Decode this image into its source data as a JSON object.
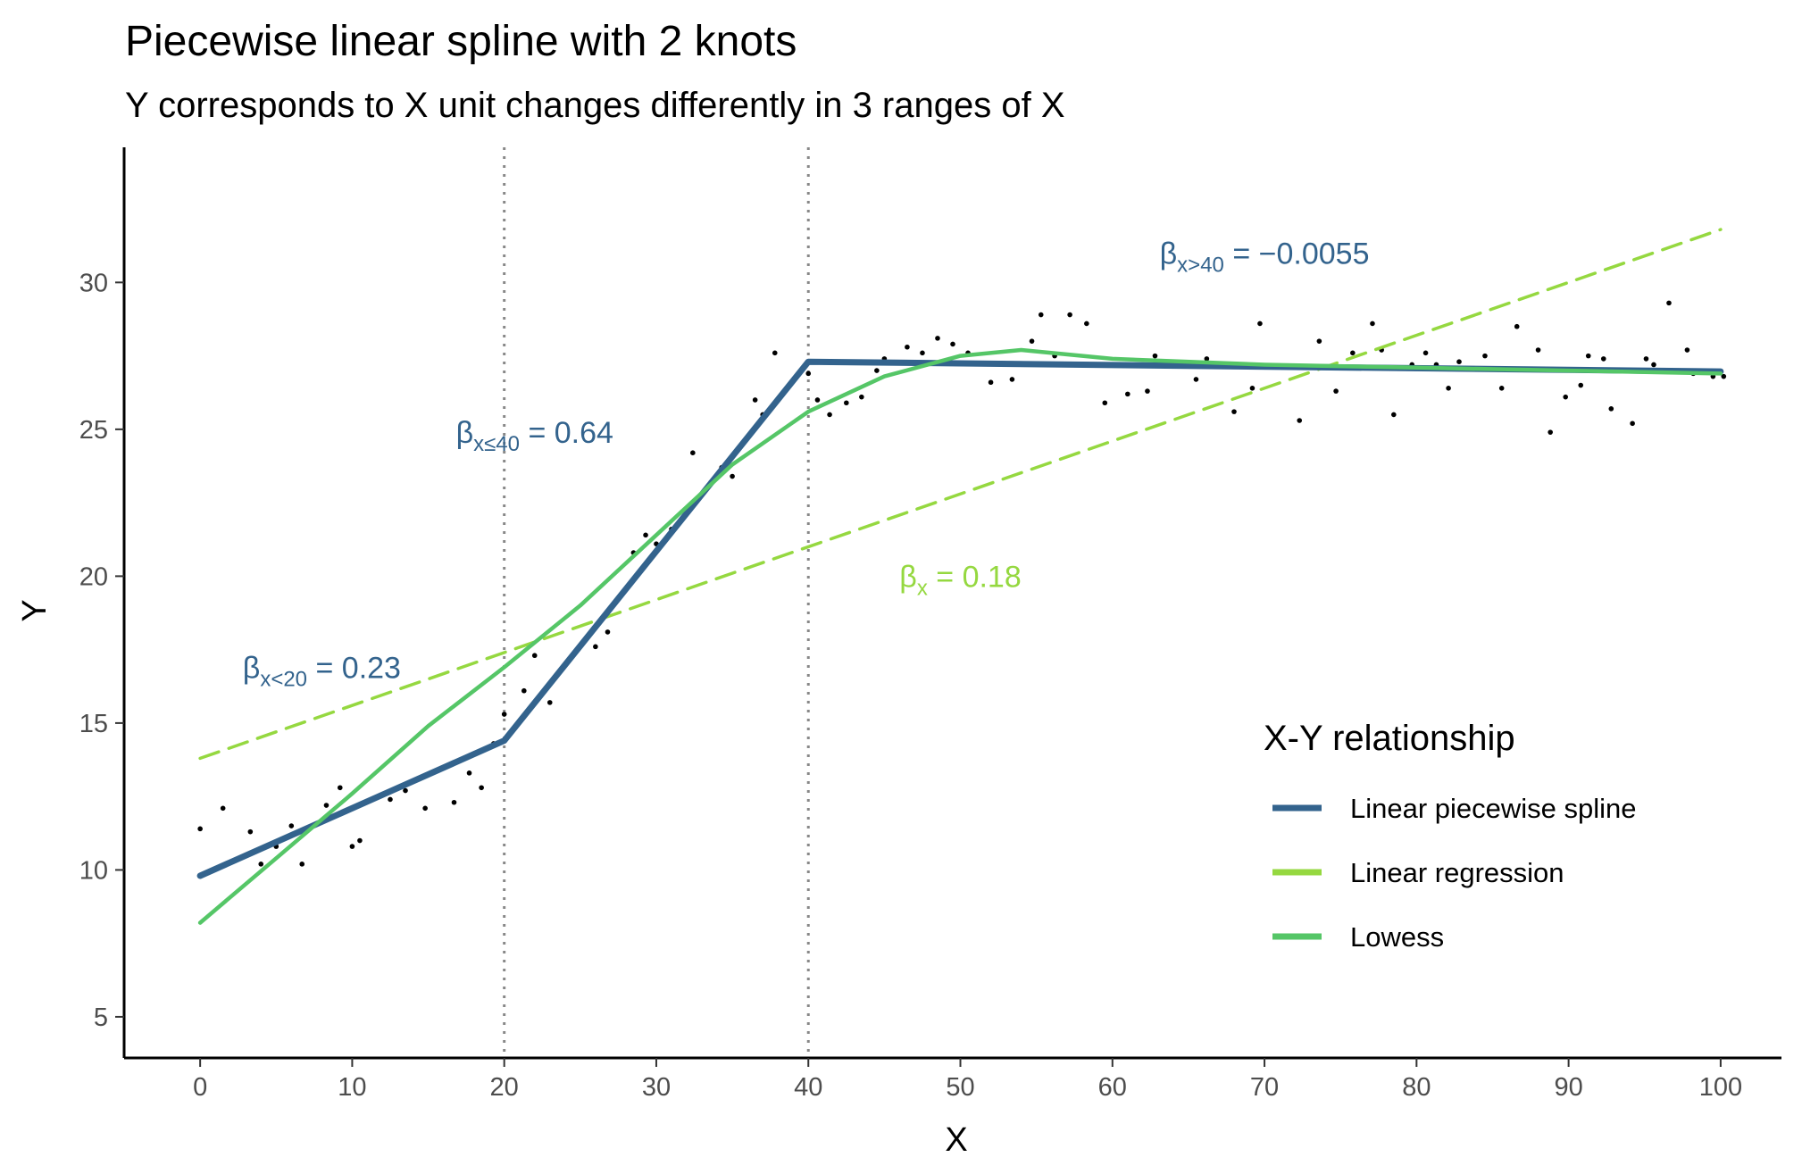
{
  "chart_data": {
    "type": "line",
    "title": "Piecewise linear spline with 2 knots",
    "subtitle": "Y corresponds to X unit changes differently in 3 ranges of X",
    "xlabel": "X",
    "ylabel": "Y",
    "xlim": [
      -5,
      104
    ],
    "ylim": [
      3.6,
      34.6
    ],
    "xticks": [
      0,
      10,
      20,
      30,
      40,
      50,
      60,
      70,
      80,
      90,
      100
    ],
    "yticks": [
      5,
      10,
      15,
      20,
      25,
      30
    ],
    "grid": false,
    "knots": [
      20,
      40
    ],
    "legend": {
      "title": "X-Y relationship",
      "position": "right-bottom",
      "entries": [
        "Linear piecewise spline",
        "Linear regression",
        "Lowess"
      ]
    },
    "colors": {
      "spline": "#33638d",
      "regression": "#95d840",
      "lowess": "#55c667",
      "points": "#000000",
      "knot_lines": "#888888"
    },
    "series": [
      {
        "name": "Linear piecewise spline",
        "style": "solid",
        "x": [
          0,
          20,
          40,
          100
        ],
        "y": [
          9.8,
          14.4,
          27.3,
          26.97
        ]
      },
      {
        "name": "Linear regression",
        "style": "dashed",
        "x": [
          0,
          100
        ],
        "y": [
          13.8,
          31.8
        ]
      },
      {
        "name": "Lowess",
        "style": "solid",
        "x": [
          0,
          5,
          10,
          15,
          20,
          25,
          30,
          35,
          40,
          45,
          50,
          54,
          60,
          70,
          80,
          90,
          100
        ],
        "y": [
          8.2,
          10.4,
          12.6,
          14.9,
          16.9,
          19.0,
          21.4,
          23.8,
          25.6,
          26.8,
          27.5,
          27.7,
          27.4,
          27.2,
          27.1,
          27.0,
          26.9
        ]
      }
    ],
    "points": {
      "x": [
        0,
        1.5,
        3.3,
        4,
        5,
        6,
        6.7,
        8.3,
        9.2,
        10,
        10.5,
        12.5,
        13.5,
        14.8,
        16.7,
        17.7,
        18.5,
        19.3,
        20,
        21.3,
        22,
        23,
        26,
        26.8,
        28.5,
        29.3,
        30,
        31,
        32.4,
        33.6,
        34.3,
        35,
        36.5,
        37,
        37.8,
        40,
        40.6,
        41.4,
        42.5,
        43.5,
        44.5,
        45,
        46.5,
        47.5,
        48.5,
        49.5,
        50.5,
        52,
        53.4,
        54.7,
        55.3,
        56.2,
        57.2,
        58.3,
        59.5,
        61,
        62.3,
        62.8,
        65.5,
        66.2,
        68,
        69.2,
        69.7,
        72.3,
        73.6,
        74.7,
        75.8,
        77.1,
        77.7,
        78.5,
        79.7,
        80.6,
        81.3,
        82.1,
        82.8,
        84.5,
        85.6,
        86.6,
        88,
        88.8,
        89.8,
        90.8,
        91.3,
        92.3,
        92.8,
        94.2,
        95.1,
        95.6,
        96.6,
        97.8,
        98.2,
        99.5,
        100.2
      ],
      "y": [
        11.4,
        12.1,
        11.3,
        10.2,
        10.8,
        11.5,
        10.2,
        12.2,
        12.8,
        10.8,
        11,
        12.4,
        12.7,
        12.1,
        12.3,
        13.3,
        12.8,
        14.3,
        15.3,
        16.1,
        17.3,
        15.7,
        17.6,
        18.1,
        20.8,
        21.4,
        21.1,
        21.6,
        24.2,
        23.2,
        23.7,
        23.4,
        26,
        25.5,
        27.6,
        26.9,
        26,
        25.5,
        25.9,
        26.1,
        27,
        27.4,
        27.8,
        27.6,
        28.1,
        27.9,
        27.6,
        26.6,
        26.7,
        28,
        28.9,
        27.5,
        28.9,
        28.6,
        25.9,
        26.2,
        26.3,
        27.5,
        26.7,
        27.4,
        25.6,
        26.4,
        28.6,
        25.3,
        28,
        26.3,
        27.6,
        28.6,
        27.7,
        25.5,
        27.2,
        27.6,
        27.2,
        26.4,
        27.3,
        27.5,
        26.4,
        28.5,
        27.7,
        24.9,
        26.1,
        26.5,
        27.5,
        27.4,
        25.7,
        25.2,
        27.4,
        27.2,
        29.3,
        27.7,
        26.9,
        26.8,
        26.8
      ]
    },
    "annotations": [
      {
        "symbol": "β",
        "sub": "x<20",
        "rest": " = 0.23",
        "x": 8,
        "y": 16.9,
        "color": "#33638d"
      },
      {
        "symbol": "β",
        "sub": "x≤40",
        "rest": " = 0.64",
        "x": 22,
        "y": 24.9,
        "color": "#33638d"
      },
      {
        "symbol": "β",
        "sub": "x",
        "rest": " = 0.18",
        "x": 50,
        "y": 20,
        "color": "#95d840"
      },
      {
        "symbol": "β",
        "sub": "x>40",
        "rest": " = −0.0055",
        "x": 70,
        "y": 31,
        "color": "#33638d"
      }
    ]
  }
}
